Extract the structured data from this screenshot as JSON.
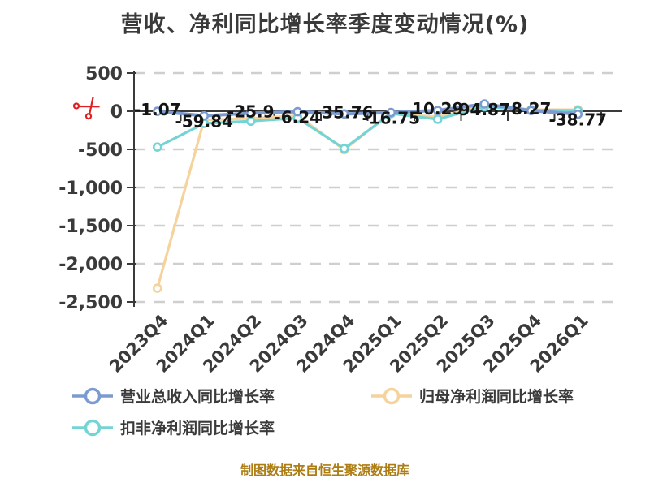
{
  "title": "营收、净利同比增长率季度变动情况(%)",
  "caption": "制图数据来自恒生聚源数据库",
  "colors": {
    "revenue": "#7b9bd0",
    "net_profit": "#f6d29c",
    "non_gaap": "#74d4d4",
    "title_text": "#3a3a3a",
    "axis_text": "#3a3a3a",
    "data_label_text": "#141414",
    "grid_line": "#cfcfcf",
    "axis_line": "#3a3a3a",
    "caption_text": "#ad7d14",
    "scissors": "#e02020",
    "marker_fill": "#ffffff"
  },
  "legend": {
    "items": [
      {
        "key": "revenue",
        "label": "营业总收入同比增长率"
      },
      {
        "key": "net_profit",
        "label": "归母净利润同比增长率"
      },
      {
        "key": "non_gaap",
        "label": "扣非净利润同比增长率"
      }
    ],
    "position": "bottom"
  },
  "chart_data": {
    "type": "line",
    "categories": [
      "2023Q4",
      "2024Q1",
      "2024Q2",
      "2024Q3",
      "2024Q4",
      "2025Q1",
      "2025Q2",
      "2025Q3",
      "2025Q4",
      "2026Q1"
    ],
    "series": [
      {
        "name": "营业总收入同比增长率",
        "color_key": "revenue",
        "values": [
          -1.07,
          -59.84,
          -25.9,
          -6.24,
          -35.76,
          -16.75,
          10.29,
          94.87,
          8.27,
          -38.77
        ],
        "labels": [
          "-1.07",
          "-59.84",
          "-25.9",
          "-6.24",
          "-35.76",
          "-16.75",
          "10.29",
          "94.87",
          "8.27",
          "-38.77"
        ],
        "show_labels": true
      },
      {
        "name": "归母净利润同比增长率",
        "color_key": "net_profit",
        "values": [
          -2320,
          -115,
          -95,
          -60,
          -505,
          -20,
          -80,
          78,
          22,
          20
        ],
        "values_estimated": true,
        "show_labels": false
      },
      {
        "name": "扣非净利润同比增长率",
        "color_key": "non_gaap",
        "values": [
          -470,
          -160,
          -130,
          -90,
          -490,
          -30,
          -105,
          60,
          15,
          8
        ],
        "values_estimated": true,
        "show_labels": false
      }
    ],
    "y_ticks": [
      {
        "value": 500,
        "label": "500"
      },
      {
        "value": 0,
        "label": "0"
      },
      {
        "value": -500,
        "label": "-500"
      },
      {
        "value": -1000,
        "label": "-1,000"
      },
      {
        "value": -1500,
        "label": "-1,500"
      },
      {
        "value": -2000,
        "label": "-2,000"
      },
      {
        "value": -2500,
        "label": "-2,500"
      }
    ],
    "ylim": [
      -2500,
      500
    ],
    "grid": "dashed-horizontal",
    "x_axis_position": "zero-line",
    "legend_position": "bottom",
    "annotations": [
      {
        "type": "scissors-mark",
        "at_value": 0,
        "side": "left"
      }
    ]
  }
}
